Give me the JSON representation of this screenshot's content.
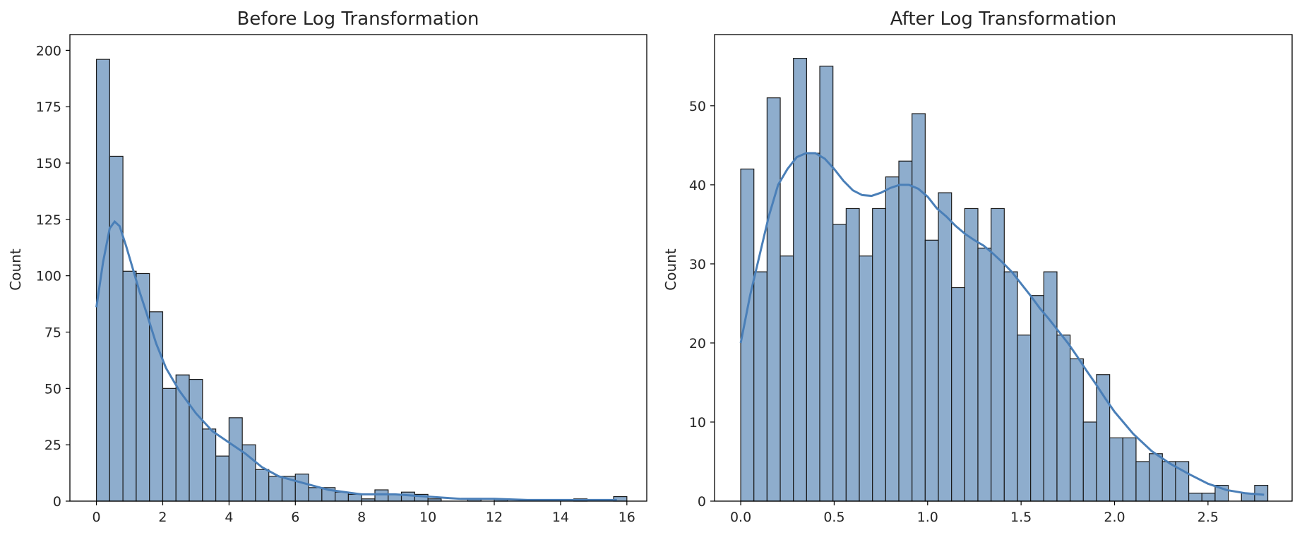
{
  "figure": {
    "colors": {
      "bar_fill": "#8eadcd",
      "bar_edge": "#1a1a1a",
      "kde": "#4a7fb8",
      "axis": "#000000",
      "text": "#262626"
    }
  },
  "chart_data": [
    {
      "type": "bar",
      "subtype": "histogram-with-kde",
      "title": "Before Log Transformation",
      "xlabel": "",
      "ylabel": "Count",
      "xlim": [
        -0.8,
        16.6
      ],
      "ylim": [
        0,
        207
      ],
      "xticks": [
        0,
        2,
        4,
        6,
        8,
        10,
        12,
        14,
        16
      ],
      "xtick_labels": [
        "0",
        "2",
        "4",
        "6",
        "8",
        "10",
        "12",
        "14",
        "16"
      ],
      "yticks": [
        0,
        25,
        50,
        75,
        100,
        125,
        150,
        175,
        200
      ],
      "ytick_labels": [
        "0",
        "25",
        "50",
        "75",
        "100",
        "125",
        "150",
        "175",
        "200"
      ],
      "bin_start": 0.0,
      "bin_width": 0.4,
      "counts": [
        196,
        153,
        102,
        101,
        84,
        50,
        56,
        54,
        32,
        20,
        37,
        25,
        14,
        11,
        11,
        12,
        6,
        6,
        4,
        3,
        1,
        5,
        3,
        4,
        3,
        1,
        0,
        0,
        1,
        0,
        1,
        0,
        0,
        0,
        0,
        0,
        1,
        0,
        0,
        2
      ],
      "kde": {
        "x": [
          0.0,
          0.2,
          0.4,
          0.55,
          0.7,
          0.9,
          1.1,
          1.3,
          1.5,
          1.8,
          2.1,
          2.5,
          3.0,
          3.5,
          4.0,
          4.5,
          5.0,
          5.5,
          6.0,
          6.5,
          7.0,
          7.5,
          8.0,
          8.5,
          9.0,
          9.5,
          10.0,
          10.5,
          11.0,
          12.0,
          13.0,
          14.0,
          15.0,
          15.7
        ],
        "y": [
          86,
          106,
          121,
          124,
          122,
          113,
          103,
          93,
          84,
          70,
          59,
          49,
          39,
          31,
          26,
          21,
          15,
          11,
          9,
          7,
          5,
          4,
          3,
          3,
          3,
          2.5,
          2,
          1.5,
          1,
          1,
          0.5,
          0.5,
          0.5,
          0.5
        ]
      }
    },
    {
      "type": "bar",
      "subtype": "histogram-with-kde",
      "title": "After Log Transformation",
      "xlabel": "",
      "ylabel": "Count",
      "xlim": [
        -0.14,
        2.95
      ],
      "ylim": [
        0,
        59
      ],
      "xticks": [
        0.0,
        0.5,
        1.0,
        1.5,
        2.0,
        2.5
      ],
      "xtick_labels": [
        "0.0",
        "0.5",
        "1.0",
        "1.5",
        "2.0",
        "2.5"
      ],
      "yticks": [
        0,
        10,
        20,
        30,
        40,
        50
      ],
      "ytick_labels": [
        "0",
        "10",
        "20",
        "30",
        "40",
        "50"
      ],
      "bin_start": 0.0,
      "bin_width": 0.0705,
      "counts": [
        42,
        29,
        51,
        31,
        56,
        44,
        55,
        35,
        37,
        31,
        37,
        41,
        43,
        49,
        33,
        39,
        27,
        37,
        32,
        37,
        29,
        21,
        26,
        29,
        21,
        18,
        10,
        16,
        8,
        8,
        5,
        6,
        5,
        5,
        1,
        1,
        2,
        0,
        1,
        2
      ],
      "kde": {
        "x": [
          0.0,
          0.05,
          0.1,
          0.15,
          0.2,
          0.25,
          0.3,
          0.35,
          0.4,
          0.45,
          0.5,
          0.55,
          0.6,
          0.65,
          0.7,
          0.75,
          0.8,
          0.85,
          0.9,
          0.95,
          1.0,
          1.05,
          1.1,
          1.15,
          1.2,
          1.25,
          1.3,
          1.35,
          1.4,
          1.45,
          1.5,
          1.55,
          1.6,
          1.65,
          1.7,
          1.75,
          1.8,
          1.85,
          1.9,
          1.95,
          2.0,
          2.1,
          2.2,
          2.3,
          2.4,
          2.5,
          2.6,
          2.7,
          2.8
        ],
        "y": [
          20,
          26,
          31,
          36,
          40,
          42,
          43.5,
          44,
          44,
          43.3,
          42,
          40.5,
          39.3,
          38.7,
          38.6,
          39,
          39.6,
          40,
          40,
          39.5,
          38.5,
          37,
          36,
          34.8,
          33.8,
          33,
          32.3,
          31.3,
          30.2,
          29,
          27.5,
          26,
          24.4,
          23,
          21.5,
          20,
          18.3,
          16.5,
          14.8,
          13,
          11.3,
          8.5,
          6.3,
          4.7,
          3.4,
          2.2,
          1.4,
          1,
          0.8
        ]
      }
    }
  ]
}
